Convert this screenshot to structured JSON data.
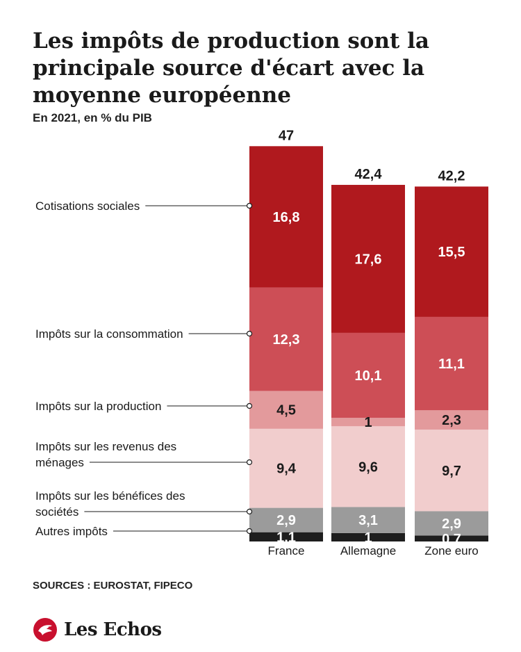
{
  "title": "Les impôts de production sont la principale source d'écart avec la moyenne européenne",
  "subtitle": "En 2021, en % du PIB",
  "source": "SOURCES : EUROSTAT, FIPECO",
  "brand": {
    "name": "Les Echos",
    "logo_icon": "les-echos-eagle-logo"
  },
  "colors": {
    "cotisations": "#b0191e",
    "consommation": "#cd4e56",
    "production": "#e39a9c",
    "revenus": "#f1cdcd",
    "benefices": "#9b9b9b",
    "autres": "#1e1e1e"
  },
  "chart_data": {
    "type": "bar",
    "stacked": true,
    "categories": [
      "France",
      "Allemagne",
      "Zone euro"
    ],
    "totals": [
      "47",
      "42,4",
      "42,2"
    ],
    "series": [
      {
        "key": "autres",
        "name": "Autres impôts",
        "values": [
          1.1,
          1,
          0.7
        ],
        "labels": [
          "1,1",
          "1",
          "0,7"
        ]
      },
      {
        "key": "benefices",
        "name": "Impôts sur les bénéfices des sociétés",
        "values": [
          2.9,
          3.1,
          2.9
        ],
        "labels": [
          "2,9",
          "3,1",
          "2,9"
        ]
      },
      {
        "key": "revenus",
        "name": "Impôts sur les revenus des ménages",
        "values": [
          9.4,
          9.6,
          9.7
        ],
        "labels": [
          "9,4",
          "9,6",
          "9,7"
        ]
      },
      {
        "key": "production",
        "name": "Impôts sur la production",
        "values": [
          4.5,
          1,
          2.3
        ],
        "labels": [
          "4,5",
          "1",
          "2,3"
        ]
      },
      {
        "key": "consommation",
        "name": "Impôts sur la consommation",
        "values": [
          12.3,
          10.1,
          11.1
        ],
        "labels": [
          "12,3",
          "10,1",
          "11,1"
        ]
      },
      {
        "key": "cotisations",
        "name": "Cotisations sociales",
        "values": [
          16.8,
          17.6,
          15.5
        ],
        "labels": [
          "16,8",
          "17,6",
          "15,5"
        ]
      }
    ],
    "legend_placement": "left"
  }
}
